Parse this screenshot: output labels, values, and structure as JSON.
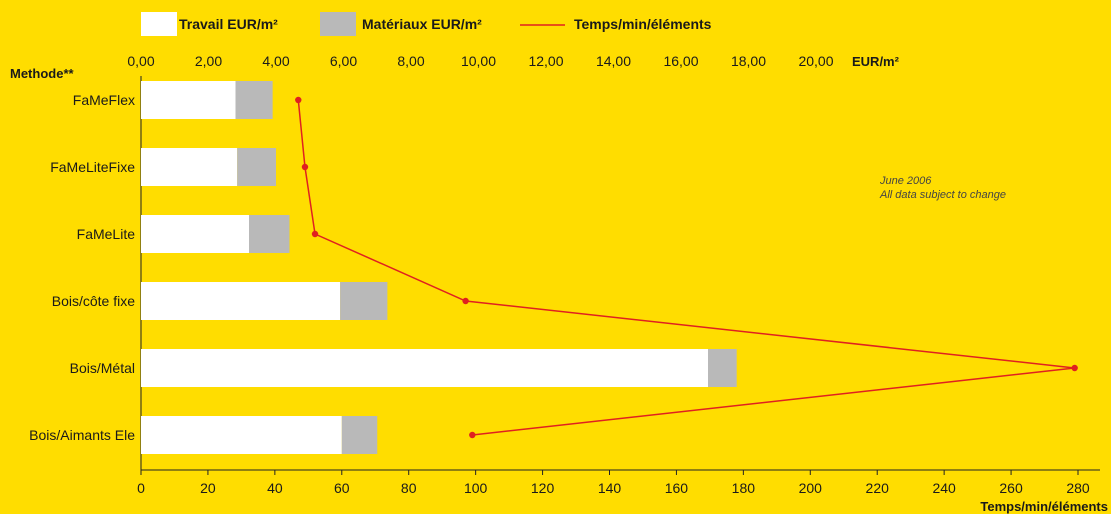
{
  "colors": {
    "background": "#FFDD00",
    "travail": "#FFFFFF",
    "materiaux": "#B9B9B9",
    "temps": "#E02020",
    "axis": "#222222"
  },
  "legend": {
    "travail": "Travail EUR/m²",
    "materiaux": "Matériaux EUR/m²",
    "temps": "Temps/min/éléments"
  },
  "note": {
    "line1": "June 2006",
    "line2": "All data subject to change"
  },
  "chart_data": {
    "type": "bar",
    "orientation": "horizontal",
    "stacked": true,
    "category_axis_title": "Methode**",
    "categories": [
      "FaMeFlex",
      "FaMeLiteFixe",
      "FaMeLite",
      "Bois/côte fixe",
      "Bois/Métal",
      "Bois/Aimants Ele"
    ],
    "top_axis": {
      "label": "EUR/m²",
      "range": [
        0,
        20
      ],
      "ticks": [
        "0,00",
        "2,00",
        "4,00",
        "6,00",
        "8,00",
        "10,00",
        "12,00",
        "14,00",
        "16,00",
        "18,00",
        "20,00"
      ]
    },
    "bottom_axis": {
      "label": "Temps/min/éléments",
      "range": [
        0,
        280
      ],
      "ticks": [
        "0",
        "20",
        "40",
        "60",
        "80",
        "100",
        "120",
        "140",
        "160",
        "180",
        "200",
        "220",
        "240",
        "260",
        "280"
      ]
    },
    "series": [
      {
        "name": "Travail EUR/m²",
        "axis": "top",
        "values": [
          2.8,
          2.85,
          3.2,
          5.9,
          16.8,
          5.95
        ]
      },
      {
        "name": "Matériaux EUR/m²",
        "axis": "top",
        "values": [
          1.1,
          1.15,
          1.2,
          1.4,
          0.85,
          1.05
        ]
      },
      {
        "name": "Temps/min/éléments",
        "axis": "bottom",
        "type": "line",
        "values": [
          47,
          49,
          52,
          97,
          279,
          99
        ]
      }
    ]
  }
}
